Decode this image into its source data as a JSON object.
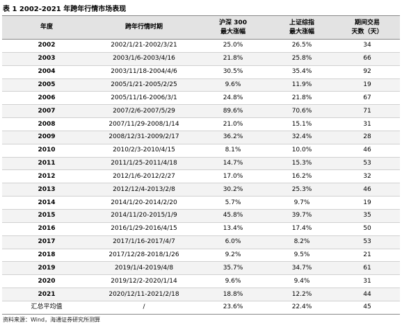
{
  "header": {
    "title": "表 1 2002-2021 年跨年行情市场表现"
  },
  "table": {
    "columns": [
      [
        "年度"
      ],
      [
        "跨年行情时期"
      ],
      [
        "沪深 300",
        "最大涨幅"
      ],
      [
        "上证综指",
        "最大涨幅"
      ],
      [
        "期间交易",
        "天数（天）"
      ]
    ],
    "rows": [
      [
        "2002",
        "2002/1/21-2002/3/21",
        "25.0%",
        "26.5%",
        "34"
      ],
      [
        "2003",
        "2003/1/6-2003/4/16",
        "21.8%",
        "25.8%",
        "66"
      ],
      [
        "2004",
        "2003/11/18-2004/4/6",
        "30.5%",
        "35.4%",
        "92"
      ],
      [
        "2005",
        "2005/1/21-2005/2/25",
        "9.6%",
        "11.9%",
        "19"
      ],
      [
        "2006",
        "2005/11/16-2006/3/1",
        "24.8%",
        "21.8%",
        "67"
      ],
      [
        "2007",
        "2007/2/6-2007/5/29",
        "89.6%",
        "70.6%",
        "71"
      ],
      [
        "2008",
        "2007/11/29-2008/1/14",
        "21.0%",
        "15.1%",
        "31"
      ],
      [
        "2009",
        "2008/12/31-2009/2/17",
        "36.2%",
        "32.4%",
        "28"
      ],
      [
        "2010",
        "2010/2/3-2010/4/15",
        "8.1%",
        "10.0%",
        "46"
      ],
      [
        "2011",
        "2011/1/25-2011/4/18",
        "14.7%",
        "15.3%",
        "53"
      ],
      [
        "2012",
        "2012/1/6-2012/2/27",
        "17.0%",
        "16.2%",
        "32"
      ],
      [
        "2013",
        "2012/12/4-2013/2/8",
        "30.2%",
        "25.3%",
        "46"
      ],
      [
        "2014",
        "2014/1/20-2014/2/20",
        "5.7%",
        "9.7%",
        "19"
      ],
      [
        "2015",
        "2014/11/20-2015/1/9",
        "45.8%",
        "39.7%",
        "35"
      ],
      [
        "2016",
        "2016/1/29-2016/4/15",
        "13.4%",
        "17.4%",
        "50"
      ],
      [
        "2017",
        "2017/1/16-2017/4/7",
        "6.0%",
        "8.2%",
        "53"
      ],
      [
        "2018",
        "2017/12/28-2018/1/26",
        "9.2%",
        "9.5%",
        "21"
      ],
      [
        "2019",
        "2019/1/4-2019/4/8",
        "35.7%",
        "34.7%",
        "61"
      ],
      [
        "2020",
        "2019/12/2-2020/1/14",
        "9.6%",
        "9.4%",
        "31"
      ],
      [
        "2021",
        "2020/12/11-2021/2/18",
        "18.8%",
        "12.2%",
        "44"
      ],
      [
        "汇总平均值",
        "/",
        "23.6%",
        "22.4%",
        "45"
      ]
    ]
  },
  "footer": {
    "source": "资料来源：Wind，海通证券研究所测算"
  }
}
